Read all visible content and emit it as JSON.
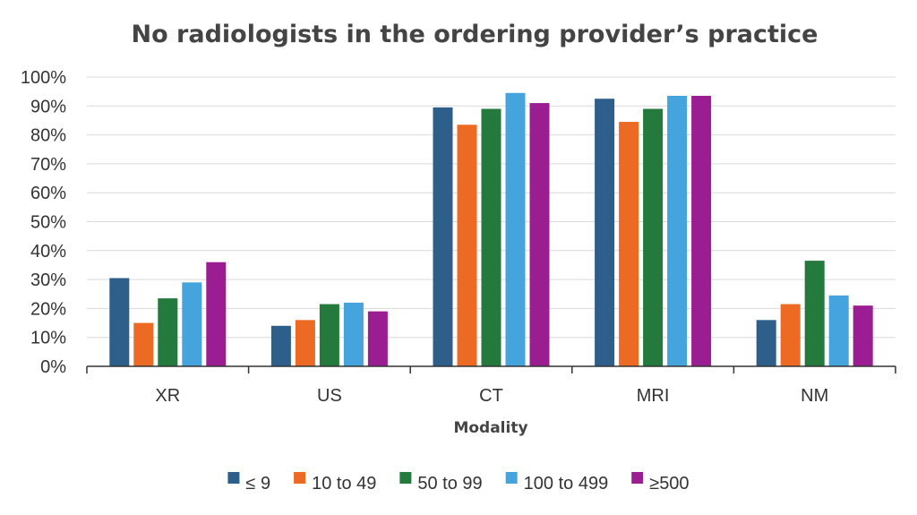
{
  "chart_data": {
    "type": "bar",
    "title": "No radiologists in the ordering provider’s practice",
    "xlabel": "Modality",
    "ylabel": "",
    "categories": [
      "XR",
      "US",
      "CT",
      "MRI",
      "NM"
    ],
    "ylim": [
      0,
      100
    ],
    "yticks": [
      "0%",
      "10%",
      "20%",
      "30%",
      "40%",
      "50%",
      "60%",
      "70%",
      "80%",
      "90%",
      "100%"
    ],
    "grid": true,
    "legend_position": "bottom",
    "series": [
      {
        "name": "≤ 9",
        "color": "#2e5f8a",
        "values": [
          30.5,
          14,
          89.5,
          92.5,
          16
        ]
      },
      {
        "name": "10 to 49",
        "color": "#ec6a23",
        "values": [
          15,
          16,
          83.5,
          84.5,
          21.5
        ]
      },
      {
        "name": "50 to 99",
        "color": "#237a3c",
        "values": [
          23.5,
          21.5,
          89,
          89,
          36.5
        ]
      },
      {
        "name": "100 to 499",
        "color": "#45a3dd",
        "values": [
          29,
          22,
          94.5,
          93.5,
          24.5
        ]
      },
      {
        "name": "≥500",
        "color": "#9a1d92",
        "values": [
          36,
          19,
          91,
          93.5,
          21
        ]
      }
    ]
  }
}
